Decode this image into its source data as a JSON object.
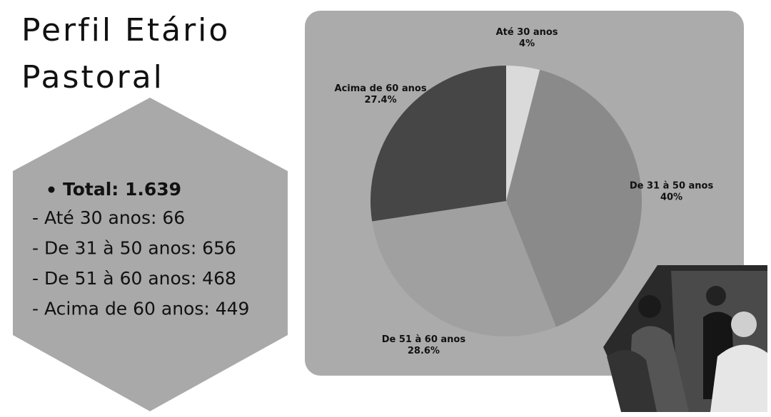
{
  "heading": "Perfil Etário Pastoral",
  "summary": {
    "total": "Total: 1.639",
    "items": [
      "- Até 30 anos: 66",
      "- De 31 à 50 anos: 656",
      "- De 51 à 60 anos: 468",
      "- Acima de 60 anos: 449"
    ]
  },
  "chart_data": {
    "type": "pie",
    "categories": [
      "Até 30 anos",
      "De 31 à 50 anos",
      "De 51 à 60 anos",
      "Acima de 60 anos"
    ],
    "values": [
      4,
      40,
      28.6,
      27.4
    ],
    "value_labels": [
      "4%",
      "40%",
      "28.6%",
      "27.4%"
    ],
    "colors": [
      "#dadada",
      "#8a8a8a",
      "#a0a0a0",
      "#464646"
    ]
  }
}
